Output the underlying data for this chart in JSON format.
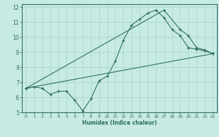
{
  "xlabel": "Humidex (Indice chaleur)",
  "bg_color": "#c8eae4",
  "grid_color": "#a8d8cc",
  "line_color": "#2a6e60",
  "xlim": [
    -0.5,
    23.5
  ],
  "ylim": [
    5,
    12.2
  ],
  "xticks": [
    0,
    1,
    2,
    3,
    4,
    5,
    6,
    7,
    8,
    9,
    10,
    11,
    12,
    13,
    14,
    15,
    16,
    17,
    18,
    19,
    20,
    21,
    22,
    23
  ],
  "yticks": [
    5,
    6,
    7,
    8,
    9,
    10,
    11,
    12
  ],
  "line1_x": [
    0,
    1,
    2,
    3,
    4,
    5,
    6,
    7,
    8,
    9,
    10,
    11,
    12,
    13,
    14,
    15,
    16,
    17,
    18,
    19,
    20,
    21,
    22,
    23
  ],
  "line1_y": [
    6.6,
    6.7,
    6.6,
    6.2,
    6.4,
    6.4,
    5.8,
    5.1,
    5.9,
    7.1,
    7.4,
    8.4,
    9.8,
    10.8,
    11.2,
    11.6,
    11.8,
    11.3,
    10.5,
    10.1,
    9.3,
    9.2,
    9.1,
    8.9
  ],
  "line2_x": [
    0,
    17,
    19,
    20,
    21,
    22,
    23
  ],
  "line2_y": [
    6.6,
    11.8,
    10.5,
    10.1,
    9.3,
    9.15,
    8.9
  ],
  "line3_x": [
    0,
    23
  ],
  "line3_y": [
    6.6,
    8.9
  ]
}
